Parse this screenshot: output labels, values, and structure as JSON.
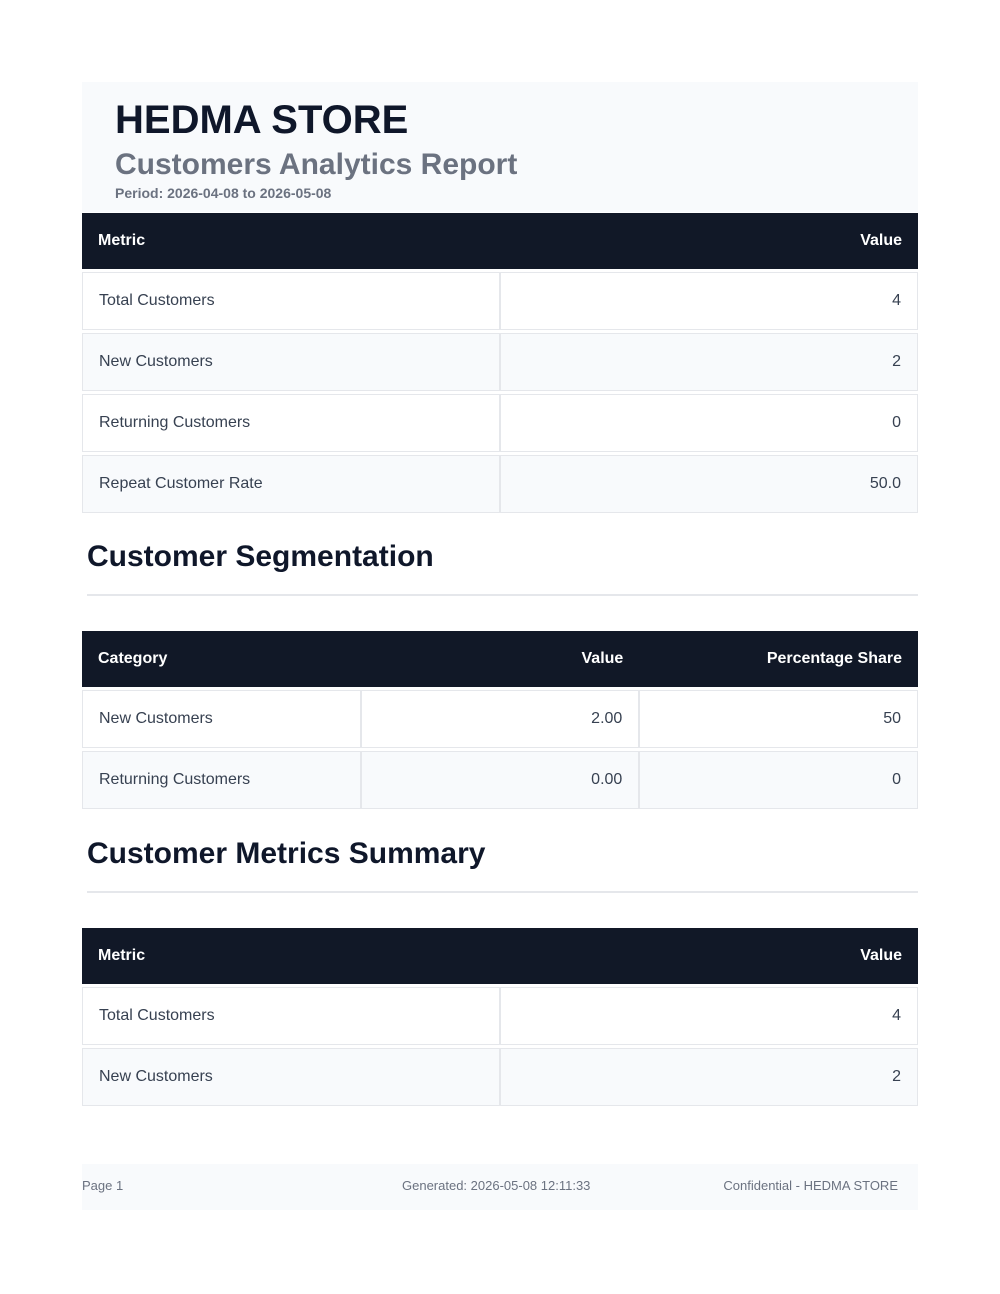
{
  "header": {
    "title": "HEDMA STORE",
    "subtitle": "Customers Analytics Report",
    "period": "Period: 2026-04-08 to 2026-05-08"
  },
  "summary_table": {
    "columns": [
      "Metric",
      "Value"
    ],
    "rows": [
      [
        "Total Customers",
        "4"
      ],
      [
        "New Customers",
        "2"
      ],
      [
        "Returning Customers",
        "0"
      ],
      [
        "Repeat Customer Rate",
        "50.0"
      ]
    ]
  },
  "segmentation": {
    "heading": "Customer Segmentation",
    "table": {
      "columns": [
        "Category",
        "Value",
        "Percentage Share"
      ],
      "rows": [
        [
          "New Customers",
          "2.00",
          "50"
        ],
        [
          "Returning Customers",
          "0.00",
          "0"
        ]
      ]
    }
  },
  "metrics_summary": {
    "heading": "Customer Metrics Summary",
    "table": {
      "columns": [
        "Metric",
        "Value"
      ],
      "rows": [
        [
          "Total Customers",
          "4"
        ],
        [
          "New Customers",
          "2"
        ]
      ]
    }
  },
  "footer": {
    "page": "Page 1",
    "generated": "Generated: 2026-05-08 12:11:33",
    "confidential": "Confidential - HEDMA STORE"
  }
}
